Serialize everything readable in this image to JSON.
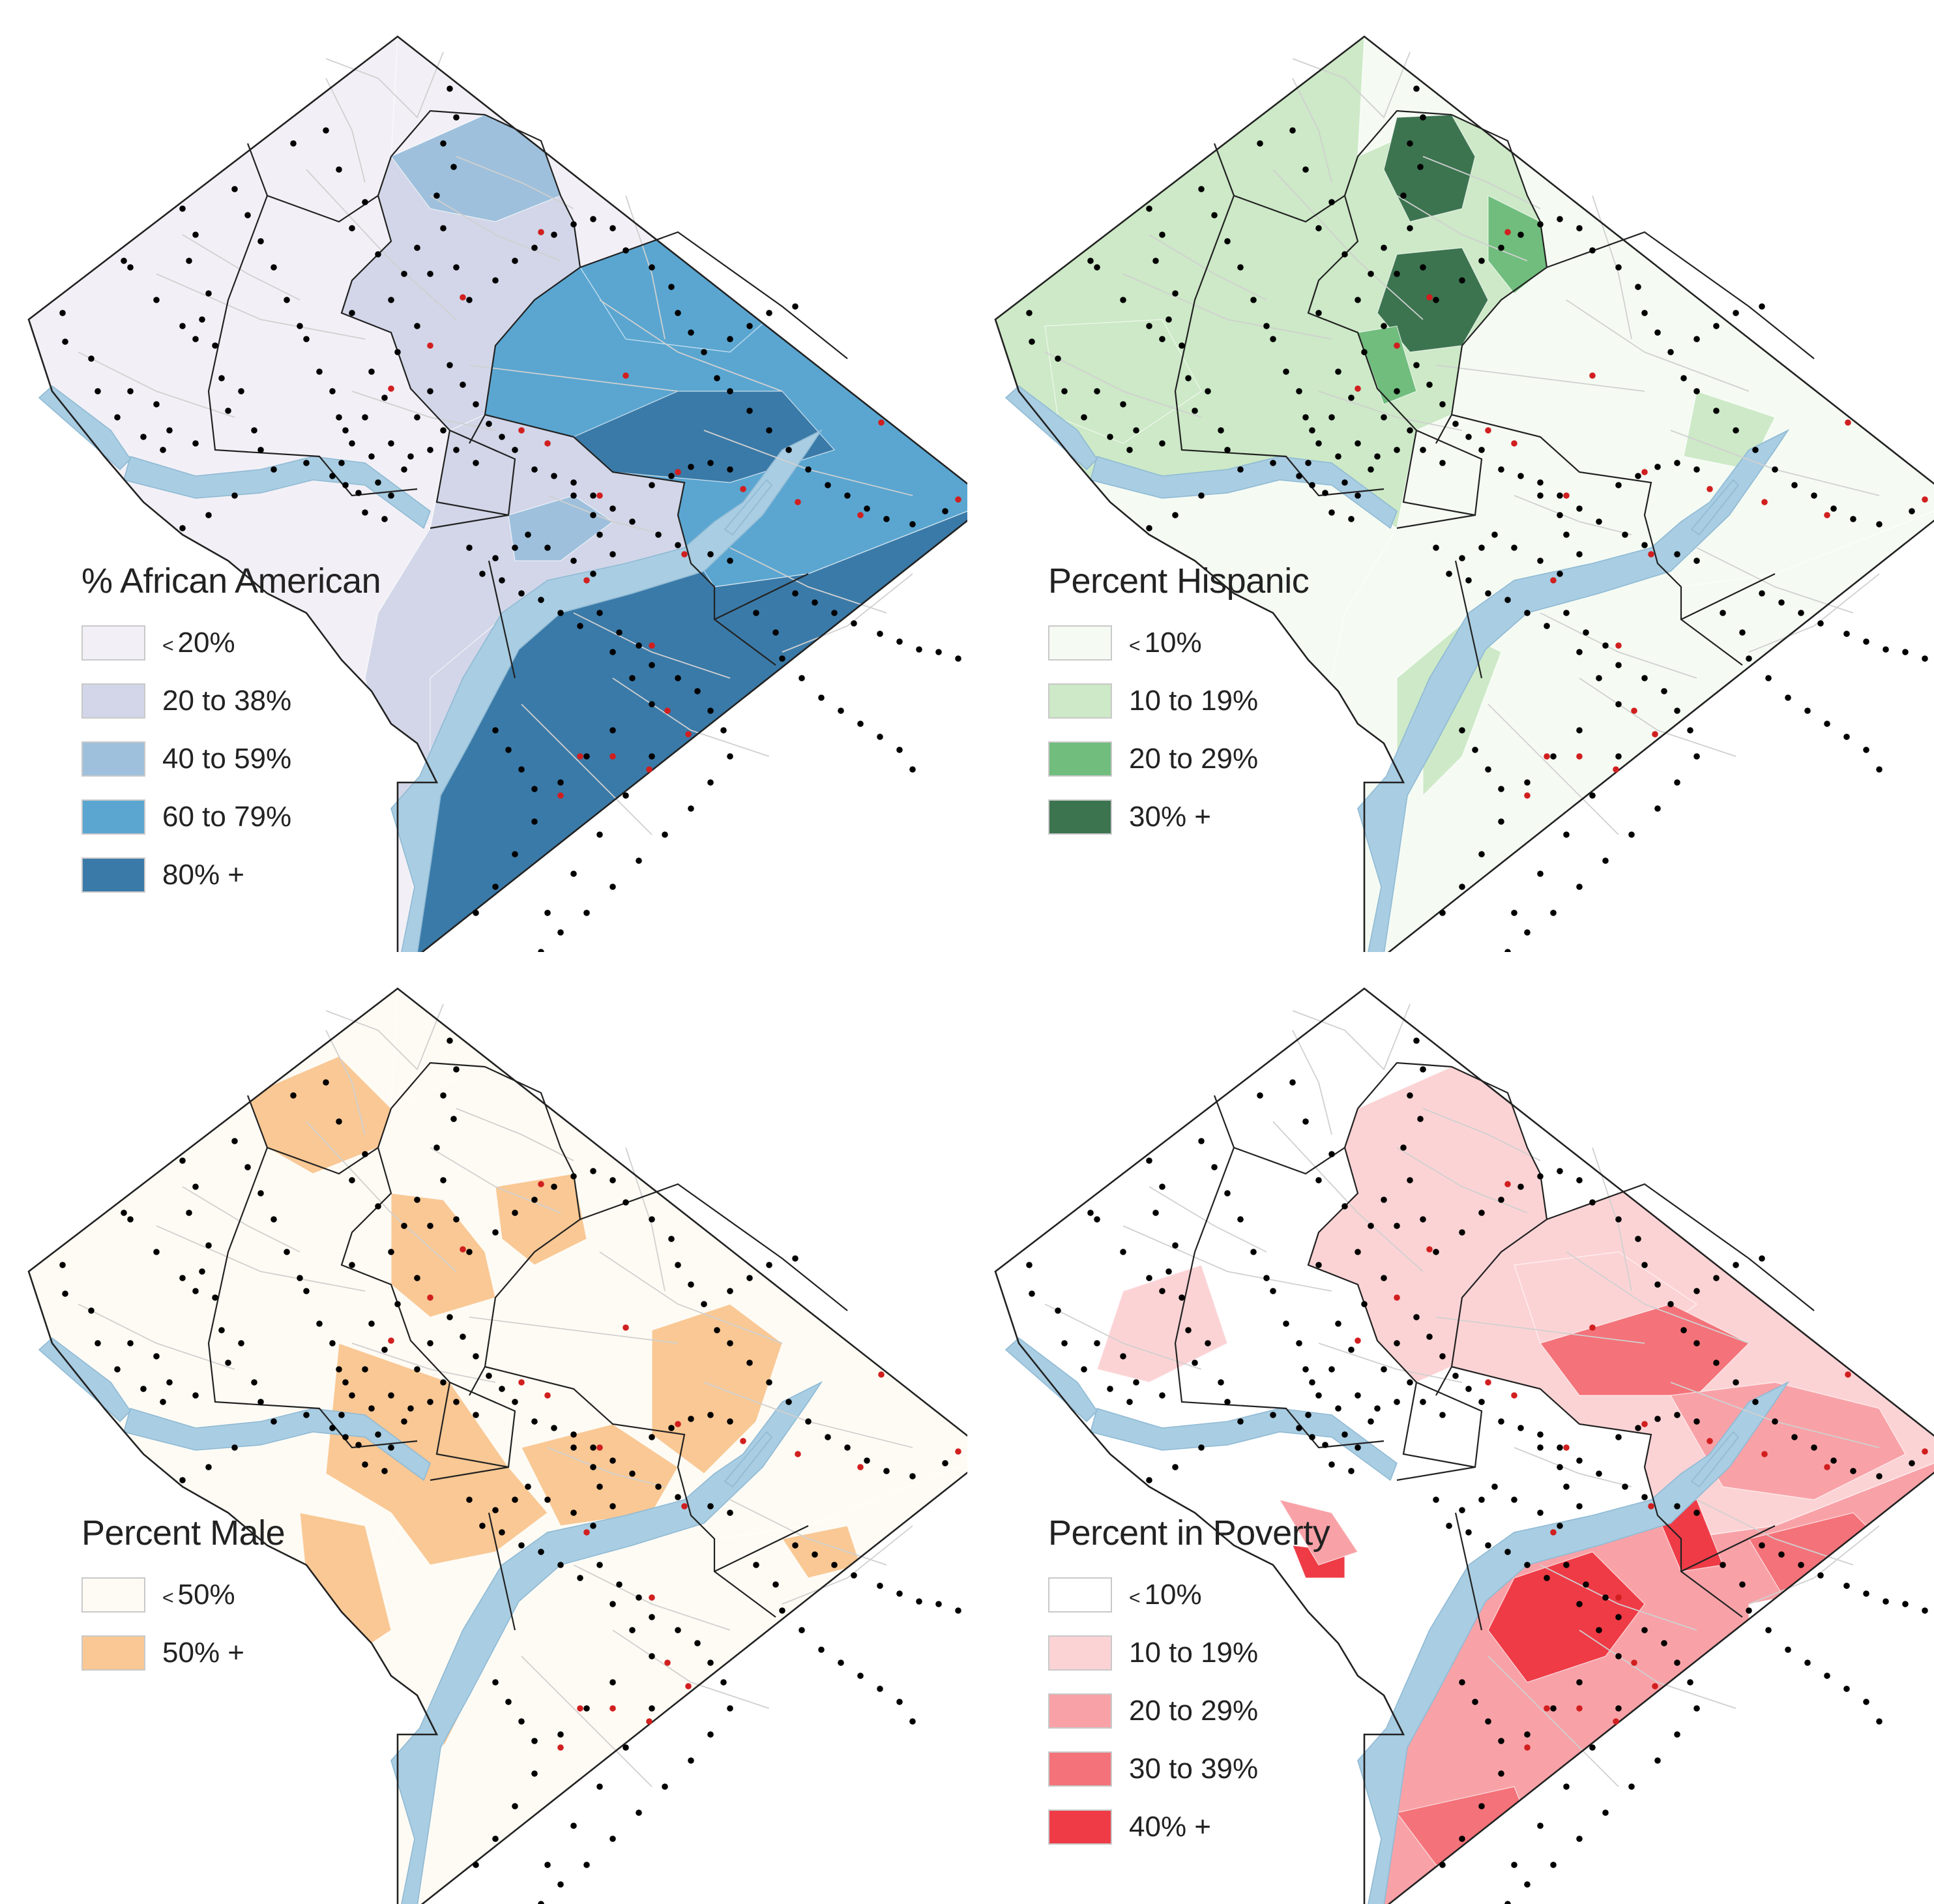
{
  "colors": {
    "water": "#a9cde2",
    "boundary": "#222222",
    "street": "#d0d0d0",
    "dot_black": "#000000",
    "dot_red": "#d11f1f"
  },
  "panels": [
    {
      "id": "african-american",
      "legend_title": "% African American",
      "items": [
        {
          "prefix": "<",
          "label": "20%",
          "color": "#f2f0f6"
        },
        {
          "prefix": "",
          "label": "20 to 38%",
          "color": "#d2d6e8"
        },
        {
          "prefix": "",
          "label": "40 to 59%",
          "color": "#9ec0dc"
        },
        {
          "prefix": "",
          "label": "60 to 79%",
          "color": "#5aa6d1"
        },
        {
          "prefix": "",
          "label": "80% +",
          "color": "#3a7aa8"
        }
      ]
    },
    {
      "id": "hispanic",
      "legend_title": "Percent Hispanic",
      "items": [
        {
          "prefix": "<",
          "label": "10%",
          "color": "#f5fbf3"
        },
        {
          "prefix": "",
          "label": "10 to 19%",
          "color": "#cde9c7"
        },
        {
          "prefix": "",
          "label": "20 to 29%",
          "color": "#70bd7d"
        },
        {
          "prefix": "",
          "label": "30% +",
          "color": "#3c7450"
        }
      ]
    },
    {
      "id": "male",
      "legend_title": "Percent Male",
      "items": [
        {
          "prefix": "<",
          "label": "50%",
          "color": "#fefbf4"
        },
        {
          "prefix": "",
          "label": "50% +",
          "color": "#f9c894"
        }
      ]
    },
    {
      "id": "poverty",
      "legend_title": "Percent in Poverty",
      "items": [
        {
          "prefix": "<",
          "label": "10%",
          "color": "#ffffff"
        },
        {
          "prefix": "",
          "label": "10 to 19%",
          "color": "#fcd3d5"
        },
        {
          "prefix": "",
          "label": "20 to 29%",
          "color": "#f8a2a7"
        },
        {
          "prefix": "",
          "label": "30 to 39%",
          "color": "#f47279"
        },
        {
          "prefix": "",
          "label": "40% +",
          "color": "#ee3b46"
        }
      ]
    }
  ]
}
